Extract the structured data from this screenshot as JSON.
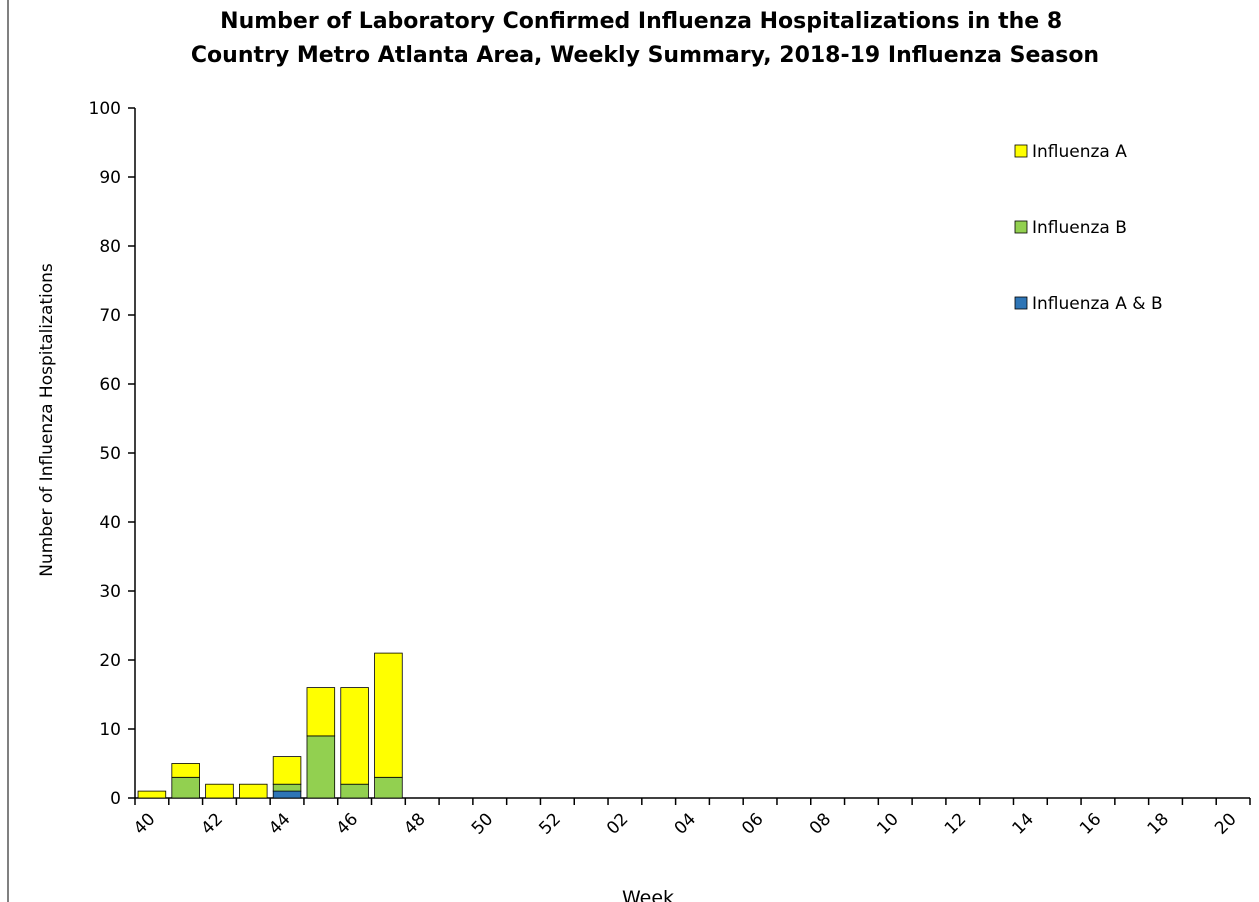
{
  "chart_data": {
    "type": "stacked-bar",
    "title": "Number of Laboratory Confirmed Influenza Hospitalizations in the 8 Country Metro Atlanta Area, Weekly Summary, 2018-19 Influenza Season",
    "x_label": "Week",
    "y_label": "Number of Influenza Hospitalizations",
    "categories": [
      "40",
      null,
      "42",
      null,
      "44",
      null,
      "46",
      null,
      "48",
      null,
      "50",
      null,
      "52",
      null,
      "02",
      null,
      "04",
      null,
      "06",
      null,
      "08",
      null,
      "10",
      null,
      "12",
      null,
      "14",
      null,
      "16",
      null,
      "18",
      null,
      "20"
    ],
    "series": [
      {
        "name": "Influenza A & B",
        "color": "#2e75b6",
        "values": [
          0,
          0,
          0,
          0,
          1,
          0,
          0,
          0,
          null,
          null,
          null,
          null,
          null,
          null,
          null,
          null,
          null,
          null,
          null,
          null,
          null,
          null,
          null,
          null,
          null,
          null,
          null,
          null,
          null,
          null,
          null,
          null,
          null
        ]
      },
      {
        "name": "Influenza B",
        "color": "#92d050",
        "values": [
          0,
          3,
          0,
          0,
          1,
          9,
          2,
          3,
          null,
          null,
          null,
          null,
          null,
          null,
          null,
          null,
          null,
          null,
          null,
          null,
          null,
          null,
          null,
          null,
          null,
          null,
          null,
          null,
          null,
          null,
          null,
          null,
          null
        ]
      },
      {
        "name": "Influenza A",
        "color": "#ffff00",
        "values": [
          1,
          2,
          2,
          2,
          4,
          7,
          14,
          18,
          null,
          null,
          null,
          null,
          null,
          null,
          null,
          null,
          null,
          null,
          null,
          null,
          null,
          null,
          null,
          null,
          null,
          null,
          null,
          null,
          null,
          null,
          null,
          null,
          null
        ]
      }
    ],
    "ylim": [
      0,
      100
    ],
    "yticks": [
      0,
      10,
      20,
      30,
      40,
      50,
      60,
      70,
      80,
      90,
      100
    ],
    "legend": "top-right"
  }
}
